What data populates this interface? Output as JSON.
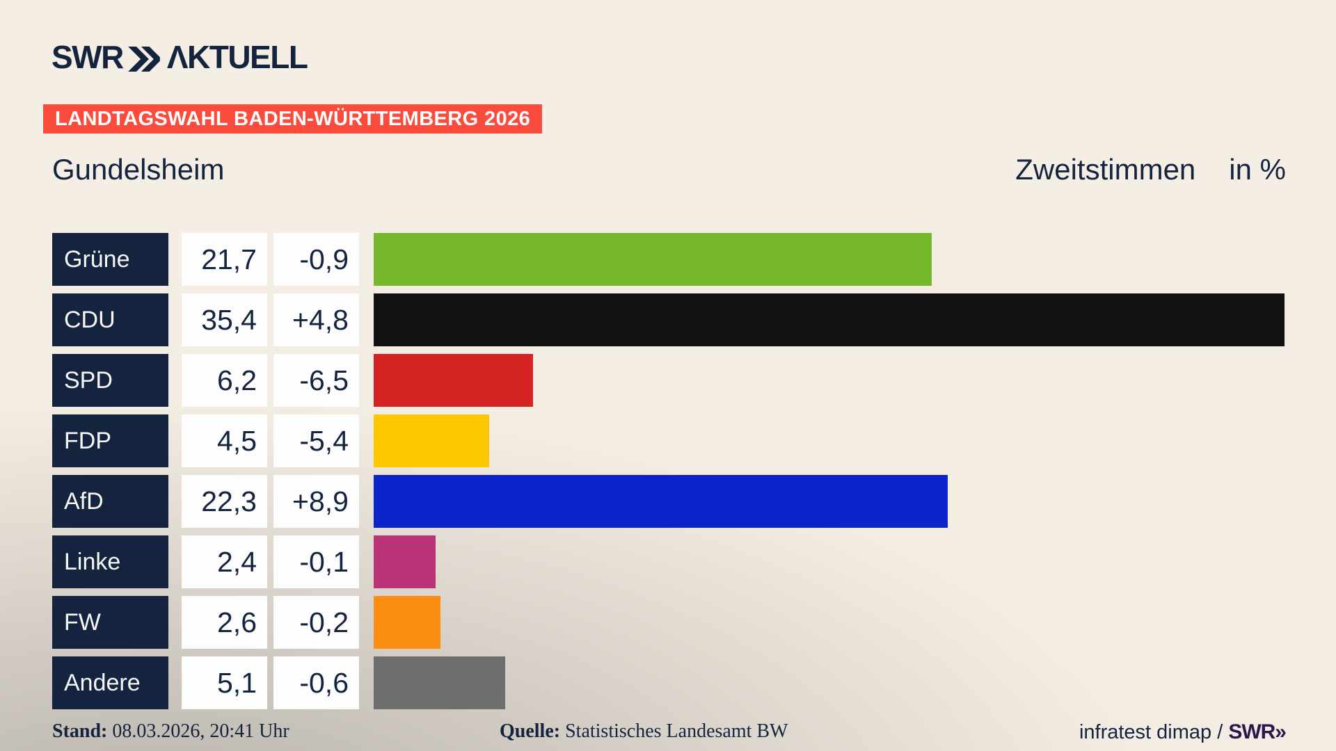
{
  "header": {
    "logo_swr": "SWR",
    "logo_brand": "ΛKTUELL",
    "chevrons_icon": "double-right-chevron",
    "banner": "LANDTAGSWAHL BADEN-WÜRTTEMBERG 2026"
  },
  "title": {
    "municipality": "Gundelsheim",
    "measure": "Zweitstimmen",
    "unit": "in %"
  },
  "chart_data": {
    "type": "bar",
    "orientation": "horizontal",
    "value_axis_max": 35.4,
    "grid": false,
    "categories": [
      "Grüne",
      "CDU",
      "SPD",
      "FDP",
      "AfD",
      "Linke",
      "FW",
      "Andere"
    ],
    "series": [
      {
        "name": "Zweitstimmen in %",
        "values": [
          21.7,
          35.4,
          6.2,
          4.5,
          22.3,
          2.4,
          2.6,
          5.1
        ]
      },
      {
        "name": "Veränderung",
        "values": [
          -0.9,
          4.8,
          -6.5,
          -5.4,
          8.9,
          -0.1,
          -0.2,
          -0.6
        ]
      }
    ],
    "bars": [
      {
        "party": "Grüne",
        "value": 21.7,
        "value_label": "21,7",
        "change_label": "-0,9",
        "color": "#76b82a"
      },
      {
        "party": "CDU",
        "value": 35.4,
        "value_label": "35,4",
        "change_label": "+4,8",
        "color": "#111111"
      },
      {
        "party": "SPD",
        "value": 6.2,
        "value_label": "6,2",
        "change_label": "-6,5",
        "color": "#d32222"
      },
      {
        "party": "FDP",
        "value": 4.5,
        "value_label": "4,5",
        "change_label": "-5,4",
        "color": "#fdc800"
      },
      {
        "party": "AfD",
        "value": 22.3,
        "value_label": "22,3",
        "change_label": "+8,9",
        "color": "#0a23cb"
      },
      {
        "party": "Linke",
        "value": 2.4,
        "value_label": "2,4",
        "change_label": "-0,1",
        "color": "#ba3377"
      },
      {
        "party": "FW",
        "value": 2.6,
        "value_label": "2,6",
        "change_label": "-0,2",
        "color": "#fb8e12"
      },
      {
        "party": "Andere",
        "value": 5.1,
        "value_label": "5,1",
        "change_label": "-0,6",
        "color": "#6e6e6e"
      }
    ]
  },
  "footer": {
    "stand_label": "Stand:",
    "stand_value": " 08.03.2026, 20:41 Uhr",
    "quelle_label": "Quelle:",
    "quelle_value": " Statistisches Landesamt BW",
    "credit_text": "infratest dimap / ",
    "credit_logo": "SWR»"
  },
  "colors": {
    "navy": "#14243f",
    "banner_red": "#f94c3c",
    "background_cream": "#f4ede3",
    "background_gray": "#c6c3bf",
    "cell_white": "#fdfdfd",
    "footer_logo_purple": "#2c164d",
    "bar_green": "#76b82a",
    "bar_black": "#111111",
    "bar_red": "#d32222",
    "bar_yellow": "#fdc800",
    "bar_blue": "#0a23cb",
    "bar_magenta": "#ba3377",
    "bar_orange": "#fb8e12",
    "bar_gray": "#6e6e6e"
  }
}
